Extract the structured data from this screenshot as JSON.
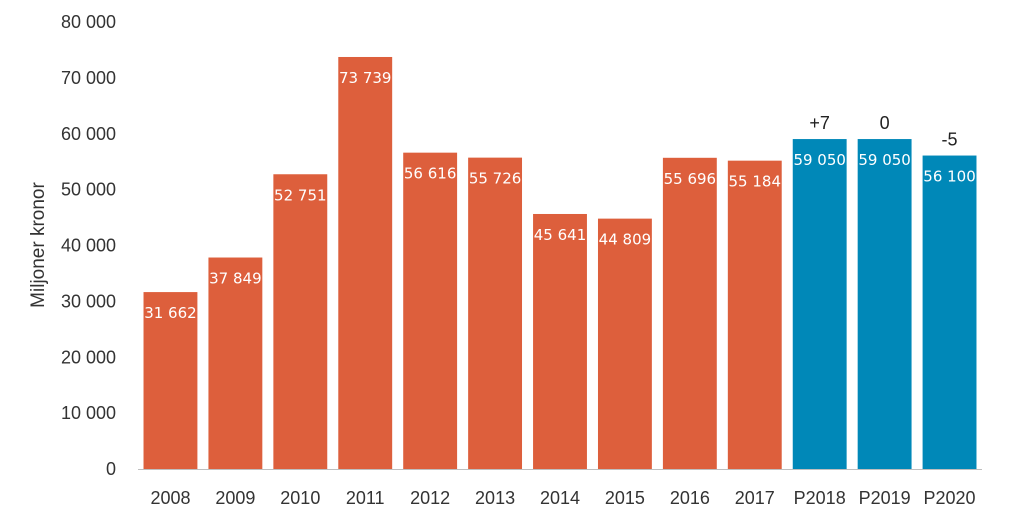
{
  "chart_data": {
    "type": "bar",
    "ylabel": "Miljoner kronor",
    "xlabel": "",
    "ylim": [
      0,
      80000
    ],
    "y_ticks": [
      0,
      10000,
      20000,
      30000,
      40000,
      50000,
      60000,
      70000,
      80000
    ],
    "y_tick_labels": [
      "0",
      "10 000",
      "20 000",
      "30 000",
      "40 000",
      "50 000",
      "60 000",
      "70 000",
      "80 000"
    ],
    "grid": false,
    "categories": [
      "2008",
      "2009",
      "2010",
      "2011",
      "2012",
      "2013",
      "2014",
      "2015",
      "2016",
      "2017",
      "P2018",
      "P2019",
      "P2020"
    ],
    "values": [
      31662,
      37849,
      52751,
      73739,
      56616,
      55726,
      45641,
      44809,
      55696,
      55184,
      59050,
      59050,
      56100
    ],
    "value_labels": [
      "31 662",
      "37 849",
      "52 751",
      "73 739",
      "56 616",
      "55 726",
      "45 641",
      "44 809",
      "55 696",
      "55 184",
      "59 050",
      "59 050",
      "56 100"
    ],
    "annotations": [
      "",
      "",
      "",
      "",
      "",
      "",
      "",
      "",
      "",
      "",
      "+7",
      "0",
      "-5"
    ],
    "colors": {
      "actual": "#DD5F3C",
      "forecast": "#0088B8",
      "axis": "#BFBFBF"
    },
    "forecast_from_index": 10
  }
}
